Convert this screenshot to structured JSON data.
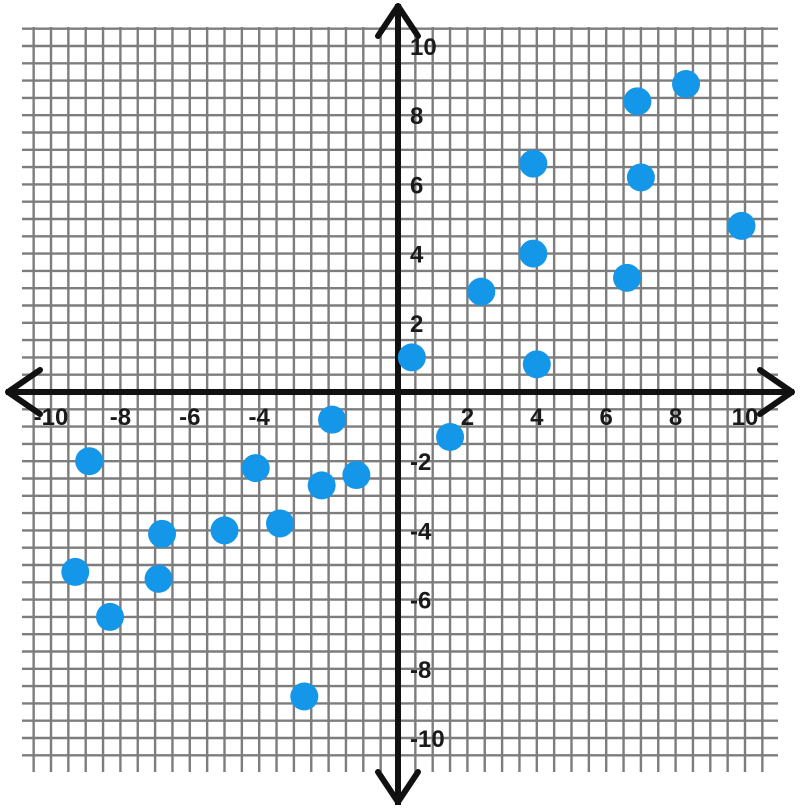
{
  "chart_data": {
    "type": "scatter",
    "title": "",
    "xlabel": "",
    "ylabel": "",
    "xlim": [
      -10.3,
      10.5
    ],
    "ylim": [
      -10.2,
      10.3
    ],
    "grid": true,
    "x_tick_labels": [
      "-10",
      "-8",
      "-6",
      "-4",
      "-2",
      "2",
      "4",
      "6",
      "8",
      "10"
    ],
    "y_tick_labels": [
      "10",
      "8",
      "6",
      "4",
      "2",
      "-2",
      "-4",
      "-6",
      "-8",
      "-10"
    ],
    "series": [
      {
        "color": "#1497e8",
        "points": [
          {
            "x": -9.3,
            "y": -5.2
          },
          {
            "x": -8.9,
            "y": -2.0
          },
          {
            "x": -8.3,
            "y": -6.5
          },
          {
            "x": -6.9,
            "y": -5.4
          },
          {
            "x": -6.8,
            "y": -4.1
          },
          {
            "x": -5.0,
            "y": -4.0
          },
          {
            "x": -4.1,
            "y": -2.2
          },
          {
            "x": -3.4,
            "y": -3.8
          },
          {
            "x": -2.7,
            "y": -8.8
          },
          {
            "x": -2.2,
            "y": -2.7
          },
          {
            "x": -1.9,
            "y": -0.8
          },
          {
            "x": -1.2,
            "y": -2.4
          },
          {
            "x": 0.4,
            "y": 1.0
          },
          {
            "x": 1.5,
            "y": -1.3
          },
          {
            "x": 2.4,
            "y": 2.9
          },
          {
            "x": 3.9,
            "y": 6.6
          },
          {
            "x": 3.9,
            "y": 4.0
          },
          {
            "x": 4.0,
            "y": 0.8
          },
          {
            "x": 6.6,
            "y": 3.3
          },
          {
            "x": 6.9,
            "y": 8.4
          },
          {
            "x": 7.0,
            "y": 6.2
          },
          {
            "x": 8.3,
            "y": 8.9
          },
          {
            "x": 9.9,
            "y": 4.8
          }
        ]
      }
    ]
  }
}
